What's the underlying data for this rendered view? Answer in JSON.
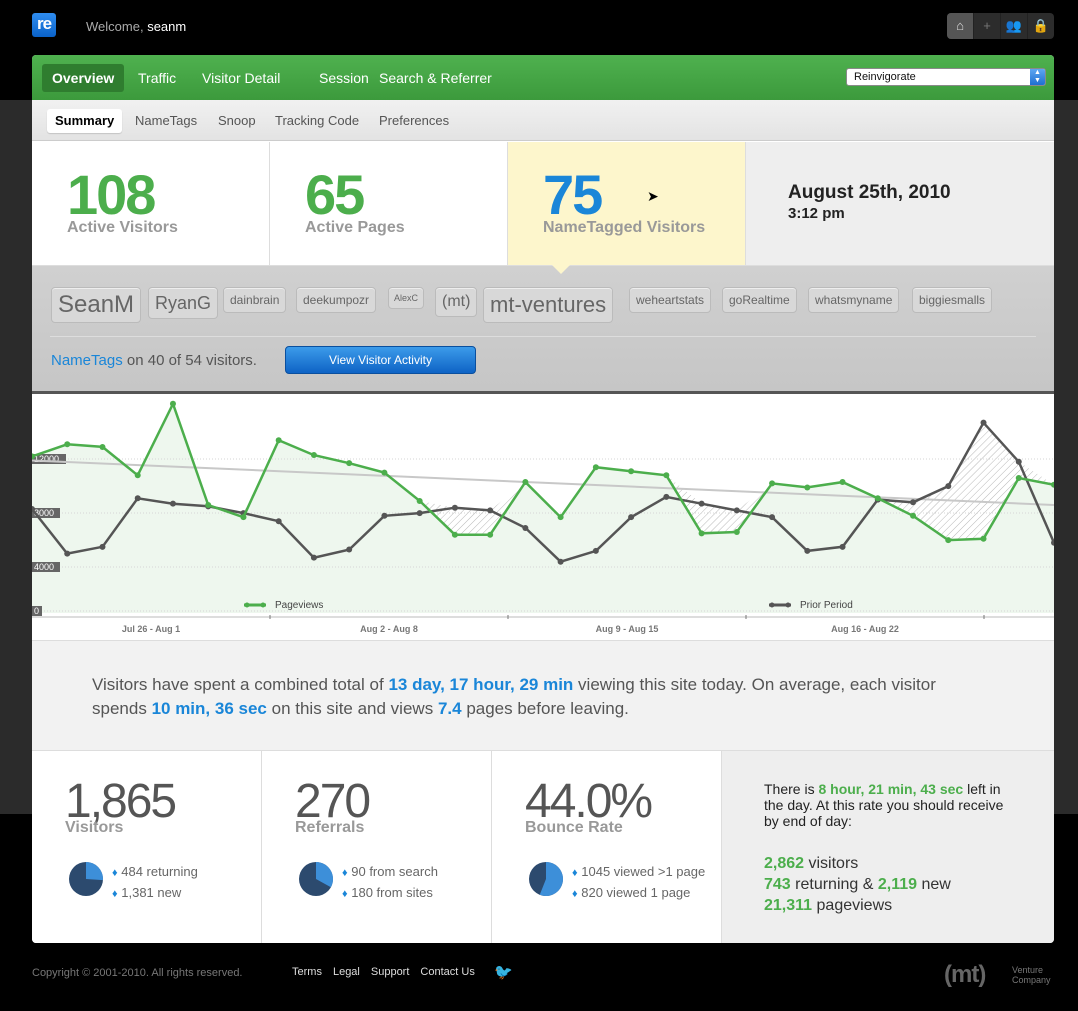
{
  "header": {
    "logo_text": "re",
    "welcome_prefix": "Welcome,",
    "username": "seanm",
    "icons": [
      "home-icon",
      "plus-icon",
      "users-icon",
      "lock-icon"
    ]
  },
  "nav": {
    "items": [
      "Overview",
      "Traffic",
      "Visitor Detail",
      "Session",
      "Search & Referrer"
    ],
    "site_select": "Reinvigorate"
  },
  "subnav": {
    "items": [
      "Summary",
      "NameTags",
      "Snoop",
      "Tracking Code",
      "Preferences"
    ]
  },
  "stats": {
    "active_visitors": {
      "value": "108",
      "label": "Active Visitors"
    },
    "active_pages": {
      "value": "65",
      "label": "Active Pages"
    },
    "nametagged": {
      "value": "75",
      "label": "NameTagged Visitors"
    },
    "date": "August 25th, 2010",
    "time": "3:12 pm"
  },
  "tags": {
    "names": [
      "SeanM",
      "RyanG",
      "dainbrain",
      "deekumpozr",
      "AlexC",
      "(mt)",
      "mt-ventures",
      "weheartstats",
      "goRealtime",
      "whatsmyname",
      "biggiesmalls"
    ],
    "note_link": "NameTags",
    "note_rest": "on 40 of 54 visitors.",
    "button": "View Visitor Activity"
  },
  "chart_data": {
    "type": "line",
    "y_ticks": [
      "12000",
      "8000",
      "4000",
      "0"
    ],
    "ylim": [
      0,
      16000
    ],
    "x_labels": [
      "Jul 26 - Aug 1",
      "Aug 2 - Aug 8",
      "Aug 9 - Aug 15",
      "Aug 16 - Aug 22"
    ],
    "series": [
      {
        "name": "Pageviews",
        "color": "#4cae4c",
        "values": [
          11600,
          12500,
          12300,
          10200,
          15500,
          8000,
          7100,
          12800,
          11700,
          11100,
          10400,
          8300,
          5800,
          5800,
          9700,
          7100,
          10800,
          10500,
          10200,
          5900,
          6000,
          9600,
          9300,
          9700,
          8500,
          7200,
          5400,
          5500,
          10000,
          9500
        ]
      },
      {
        "name": "Prior Period",
        "color": "#555555",
        "values": [
          7700,
          4400,
          4900,
          8500,
          8100,
          7900,
          7400,
          6800,
          4100,
          4700,
          7200,
          7400,
          7800,
          7600,
          6300,
          3800,
          4600,
          7100,
          8600,
          8100,
          7600,
          7100,
          4600,
          4900,
          8400,
          8200,
          9400,
          14100,
          11200,
          5200
        ]
      },
      {
        "name": "trend",
        "color": "#bbbbbb",
        "values": [
          11300,
          8000
        ]
      }
    ]
  },
  "summary": {
    "p1": "Visitors have spent a combined total of",
    "total_time": "13 day, 17 hour, 29 min",
    "p2": "viewing this site today. On average, each visitor spends",
    "avg_time": "10 min, 36 sec",
    "p3": "on this site and views",
    "avg_pages": "7.4",
    "p4": "pages before leaving."
  },
  "bottom": {
    "visitors": {
      "value": "1,865",
      "label": "Visitors",
      "l1": "484 returning",
      "l2": "1,381 new",
      "fraction": 0.26
    },
    "referrals": {
      "value": "270",
      "label": "Referrals",
      "l1": "90 from search",
      "l2": "180 from sites",
      "fraction": 0.33
    },
    "bounce": {
      "value": "44.0%",
      "label": "Bounce Rate",
      "l1": "1045 viewed >1 page",
      "l2": "820 viewed 1 page",
      "fraction": 0.56
    },
    "forecast": {
      "t1": "There is",
      "time_left": "8 hour, 21 min, 43 sec",
      "t2": "left in the day. At this rate you should receive by end of day:",
      "visitors_num": "2,862",
      "visitors_txt": "visitors",
      "returning_num": "743",
      "returning_txt": "returning &",
      "new_num": "2,119",
      "new_txt": "new",
      "pageviews_num": "21,311",
      "pageviews_txt": "pageviews"
    }
  },
  "footer": {
    "copyright": "Copyright © 2001-2010. All rights reserved.",
    "links": [
      "Terms",
      "Legal",
      "Support",
      "Contact Us"
    ],
    "logo": "(mt)",
    "logo_sub1": "Venture",
    "logo_sub2": "Company"
  }
}
